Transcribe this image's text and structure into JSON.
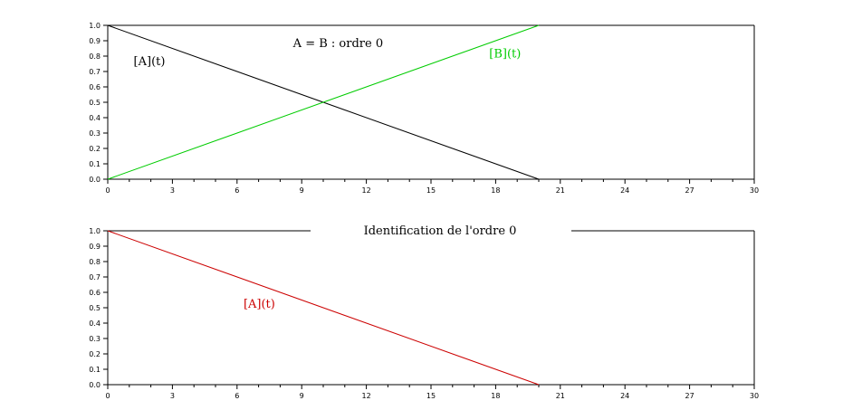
{
  "chart_data": [
    {
      "type": "line",
      "title": "",
      "xlabel": "",
      "ylabel": "",
      "xlim": [
        0,
        30
      ],
      "ylim": [
        0,
        1
      ],
      "xticks": [
        0,
        3,
        6,
        9,
        12,
        15,
        18,
        21,
        24,
        27,
        30
      ],
      "yticks": [
        "0.0",
        "0.1",
        "0.2",
        "0.3",
        "0.4",
        "0.5",
        "0.6",
        "0.7",
        "0.8",
        "0.9",
        "1.0"
      ],
      "grid": false,
      "series": [
        {
          "name": "[A](t)",
          "color": "#000000",
          "x": [
            0,
            20
          ],
          "y": [
            1.0,
            0.0
          ]
        },
        {
          "name": "[B](t)",
          "color": "#00cc00",
          "x": [
            0,
            20
          ],
          "y": [
            0.0,
            1.0
          ]
        }
      ],
      "annotations": [
        {
          "text": "[A](t)",
          "x": 1.2,
          "y": 0.74,
          "color": "#000000"
        },
        {
          "text": "[B](t)",
          "x": 17.7,
          "y": 0.79,
          "color": "#00cc00"
        },
        {
          "text": "A = B : ordre 0",
          "x": 8.6,
          "y": 0.86,
          "color": "#000000"
        }
      ]
    },
    {
      "type": "line",
      "title": "Identification de l'ordre 0",
      "xlabel": "",
      "ylabel": "",
      "xlim": [
        0,
        30
      ],
      "ylim": [
        0,
        1
      ],
      "xticks": [
        0,
        3,
        6,
        9,
        12,
        15,
        18,
        21,
        24,
        27,
        30
      ],
      "yticks": [
        "0.0",
        "0.1",
        "0.2",
        "0.3",
        "0.4",
        "0.5",
        "0.6",
        "0.7",
        "0.8",
        "0.9",
        "1.0"
      ],
      "grid": false,
      "series": [
        {
          "name": "[A](t)",
          "color": "#cc0000",
          "x": [
            0,
            20
          ],
          "y": [
            1.0,
            0.0
          ]
        }
      ],
      "annotations": [
        {
          "text": "[A](t)",
          "x": 6.3,
          "y": 0.5,
          "color": "#cc0000"
        }
      ]
    }
  ]
}
